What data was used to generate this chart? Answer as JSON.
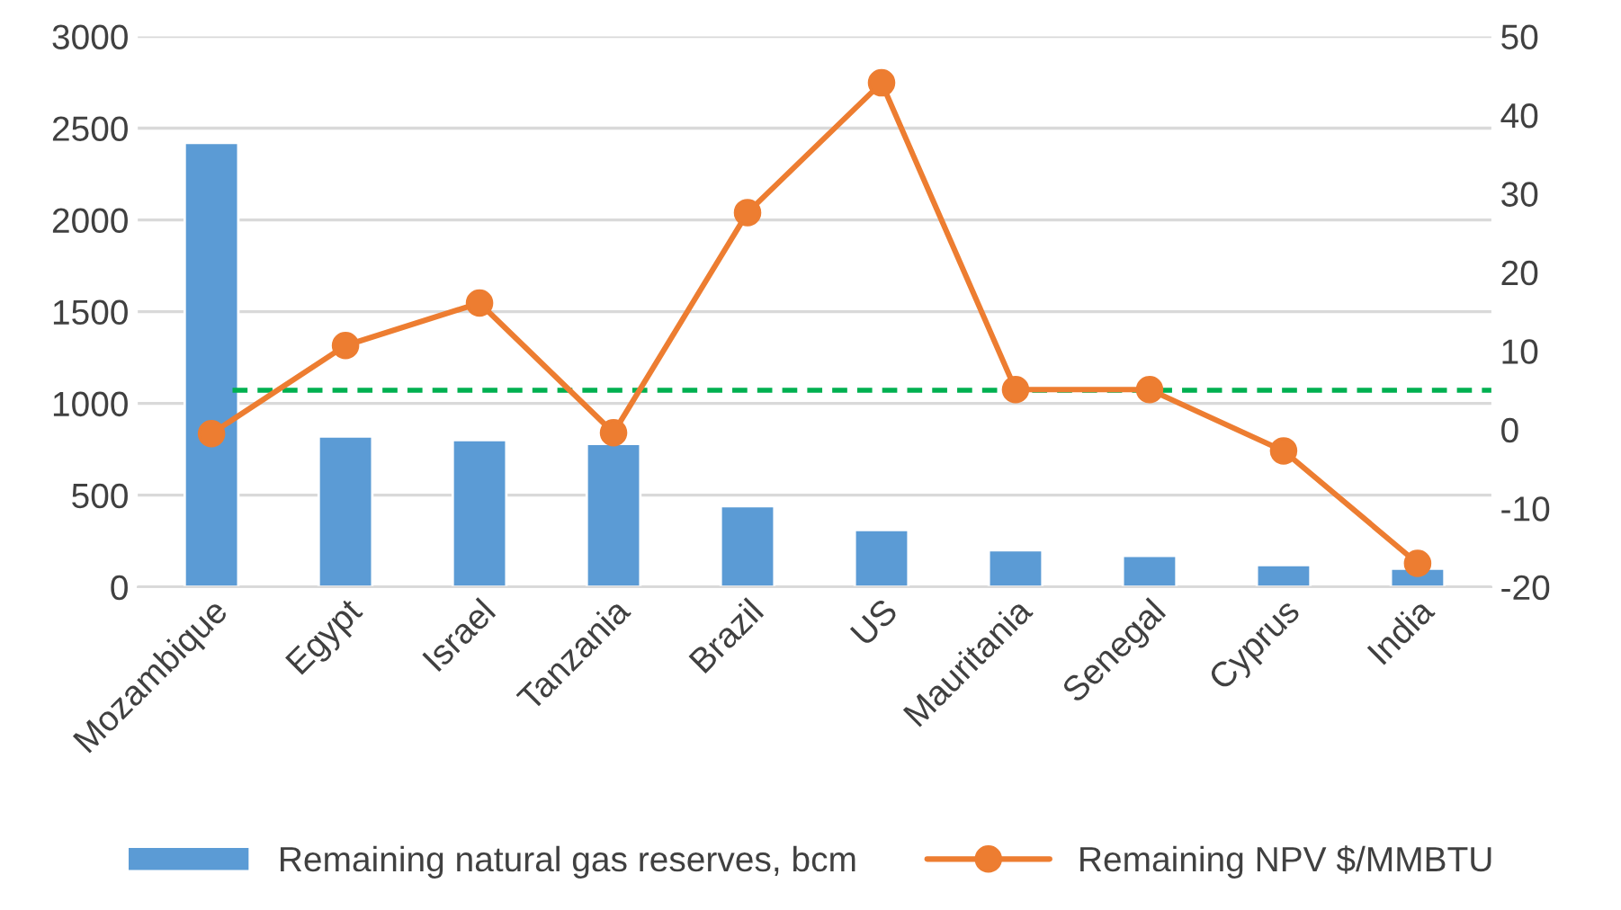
{
  "chart_data": {
    "type": "bar",
    "categories": [
      "Mozambique",
      "Egypt",
      "Israel",
      "Tanzania",
      "Brazil",
      "US",
      "Mauritania",
      "Senegal",
      "Cyprus",
      "India"
    ],
    "series": [
      {
        "name": "Remaining natural gas reserves, bcm",
        "color": "#5b9bd5",
        "values": [
          2420,
          820,
          800,
          780,
          440,
          310,
          200,
          170,
          120,
          100
        ]
      },
      {
        "name": "Remaining NPV $/MMBTU",
        "type": "line",
        "axis": "y2",
        "color": "#ed7d31",
        "marker": "circle",
        "values": [
          -0.5,
          10.7,
          16.1,
          -0.4,
          27.6,
          44.1,
          5.1,
          5.1,
          -2.7,
          -17
        ]
      }
    ],
    "ylim": [
      0,
      3000
    ],
    "yticks": [
      0,
      500,
      1000,
      1500,
      2000,
      2500,
      3000
    ],
    "y2lim": [
      -20,
      50
    ],
    "y2ticks": [
      -20,
      -10,
      0,
      10,
      20,
      30,
      40,
      50
    ],
    "ref_lines": [
      {
        "axis": "y2",
        "value": 5,
        "color": "#00b050",
        "line_style": "dashed"
      }
    ],
    "grid": "y",
    "legend": "bottom"
  }
}
